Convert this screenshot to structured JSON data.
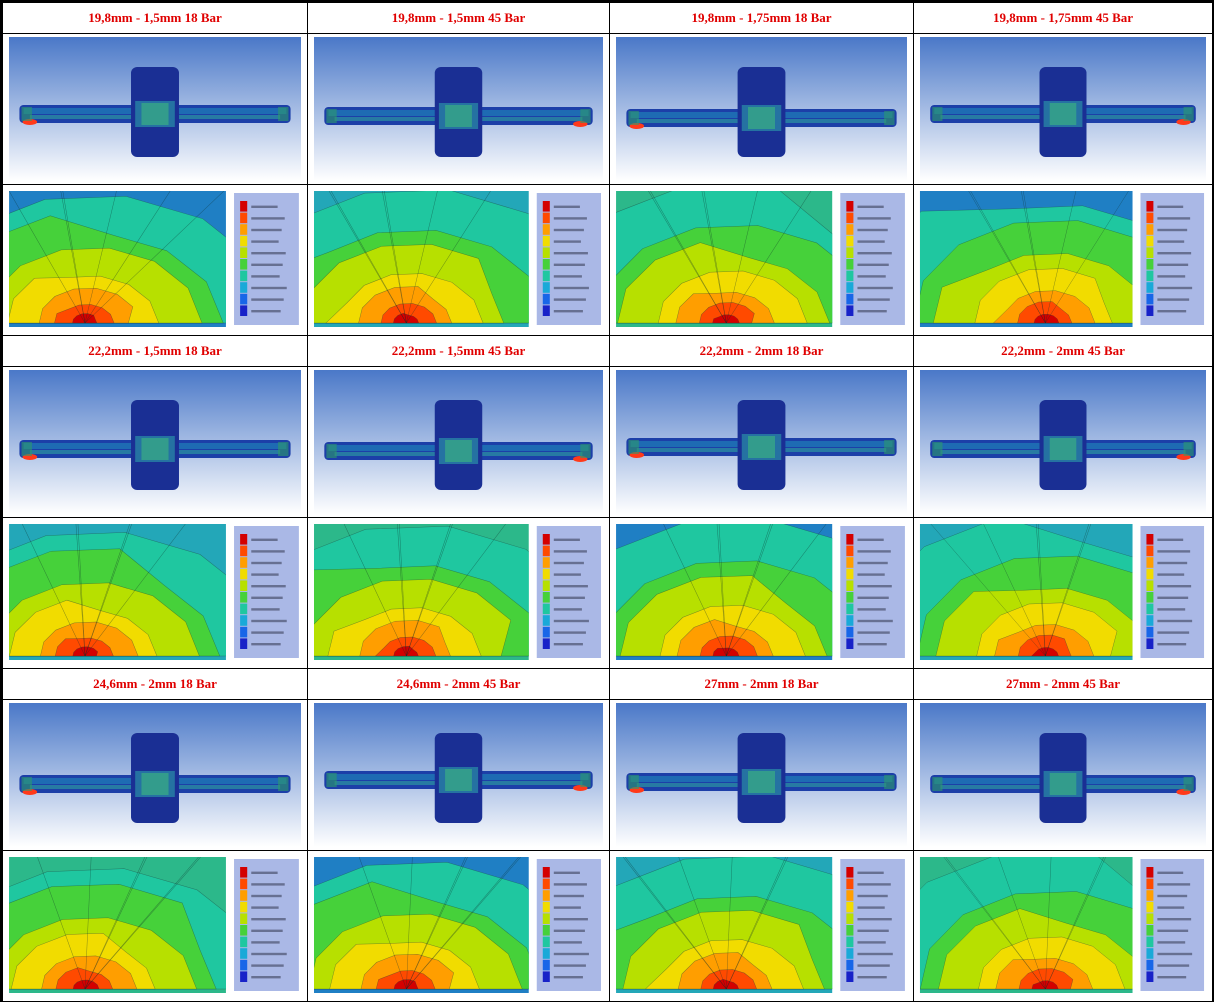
{
  "rows": [
    {
      "headers": [
        "19,8mm - 1,5mm 18 Bar",
        "19,8mm - 1,5mm 45 Bar",
        "19,8mm - 1,75mm 18 Bar",
        "19,8mm - 1,75mm 45 Bar"
      ]
    },
    {
      "headers": [
        "22,2mm - 1,5mm 18 Bar",
        "22,2mm - 1,5mm 45 Bar",
        "22,2mm - 2mm 18 Bar",
        "22,2mm - 2mm 45 Bar"
      ]
    },
    {
      "headers": [
        "24,6mm - 2mm 18 Bar",
        "24,6mm - 2mm 45 Bar",
        "27mm - 2mm 18 Bar",
        "27mm - 2mm 45 Bar"
      ]
    }
  ],
  "colors": {
    "header_text": "#e00000",
    "legend_scale": [
      "#d40000",
      "#ff4a00",
      "#ff9e00",
      "#f1dc00",
      "#b7e000",
      "#46d13a",
      "#1fc7a0",
      "#19a9d8",
      "#1866e8",
      "#1822c8"
    ],
    "background_gradient": [
      "#4a78c8",
      "#ffffff"
    ]
  }
}
